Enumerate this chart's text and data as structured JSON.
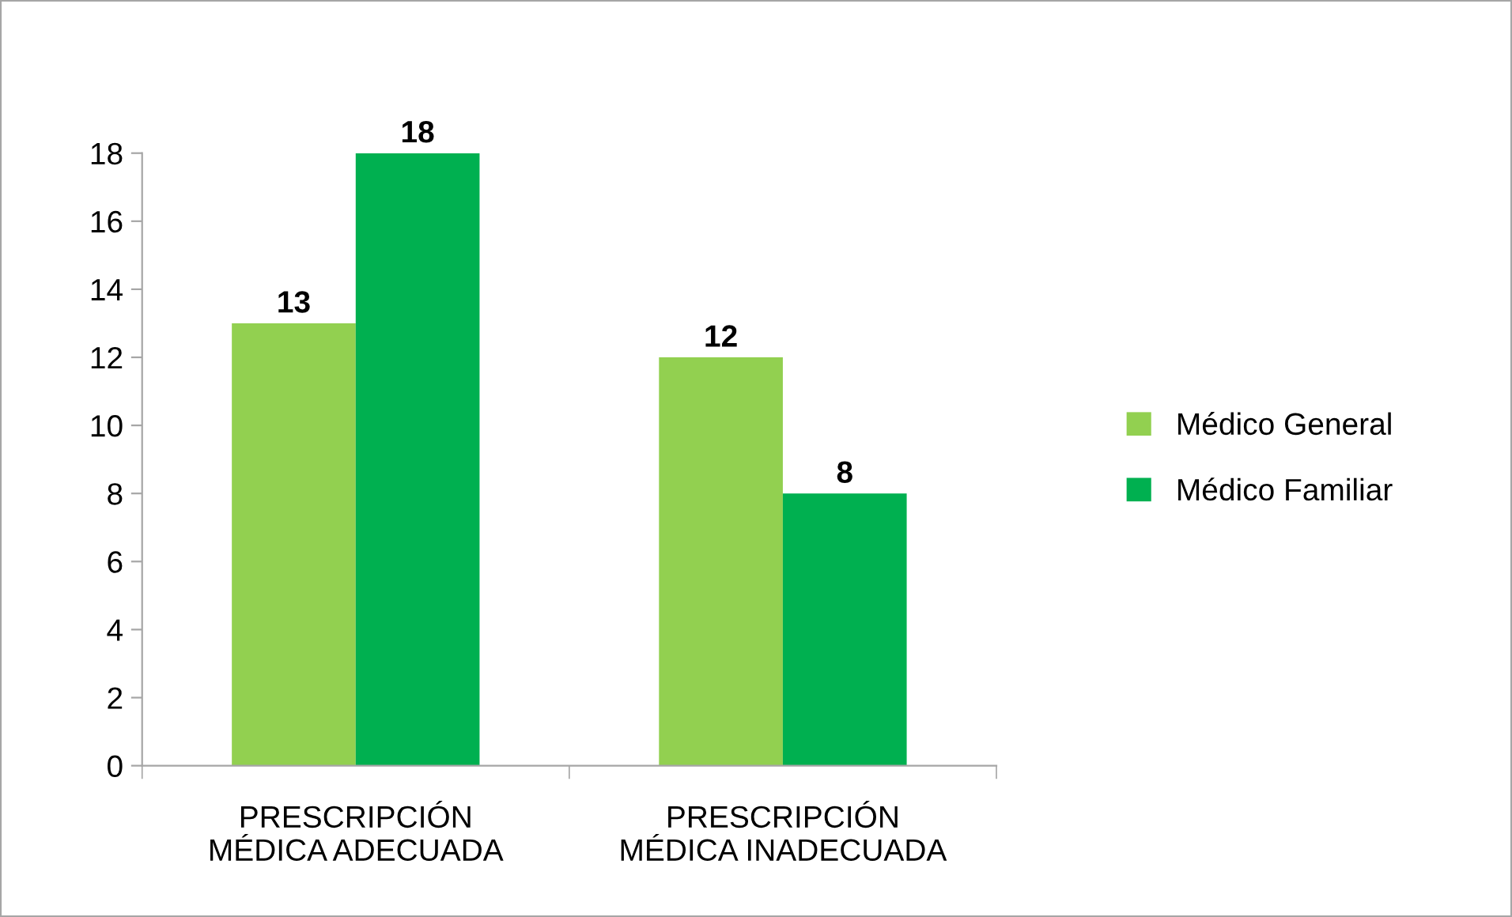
{
  "chart_data": {
    "type": "bar",
    "categories": [
      "PRESCRIPCIÓN\nMÉDICA ADECUADA",
      "PRESCRIPCIÓN\nMÉDICA INADECUADA"
    ],
    "series": [
      {
        "name": "Médico General",
        "color": "#92d050",
        "values": [
          13,
          12
        ]
      },
      {
        "name": "Médico Familiar",
        "color": "#00b050",
        "values": [
          18,
          8
        ]
      }
    ],
    "ylim": [
      0,
      18
    ],
    "yticks": [
      0,
      2,
      4,
      6,
      8,
      10,
      12,
      14,
      16,
      18
    ],
    "data_labels": true,
    "grid": false,
    "legend": "right"
  }
}
